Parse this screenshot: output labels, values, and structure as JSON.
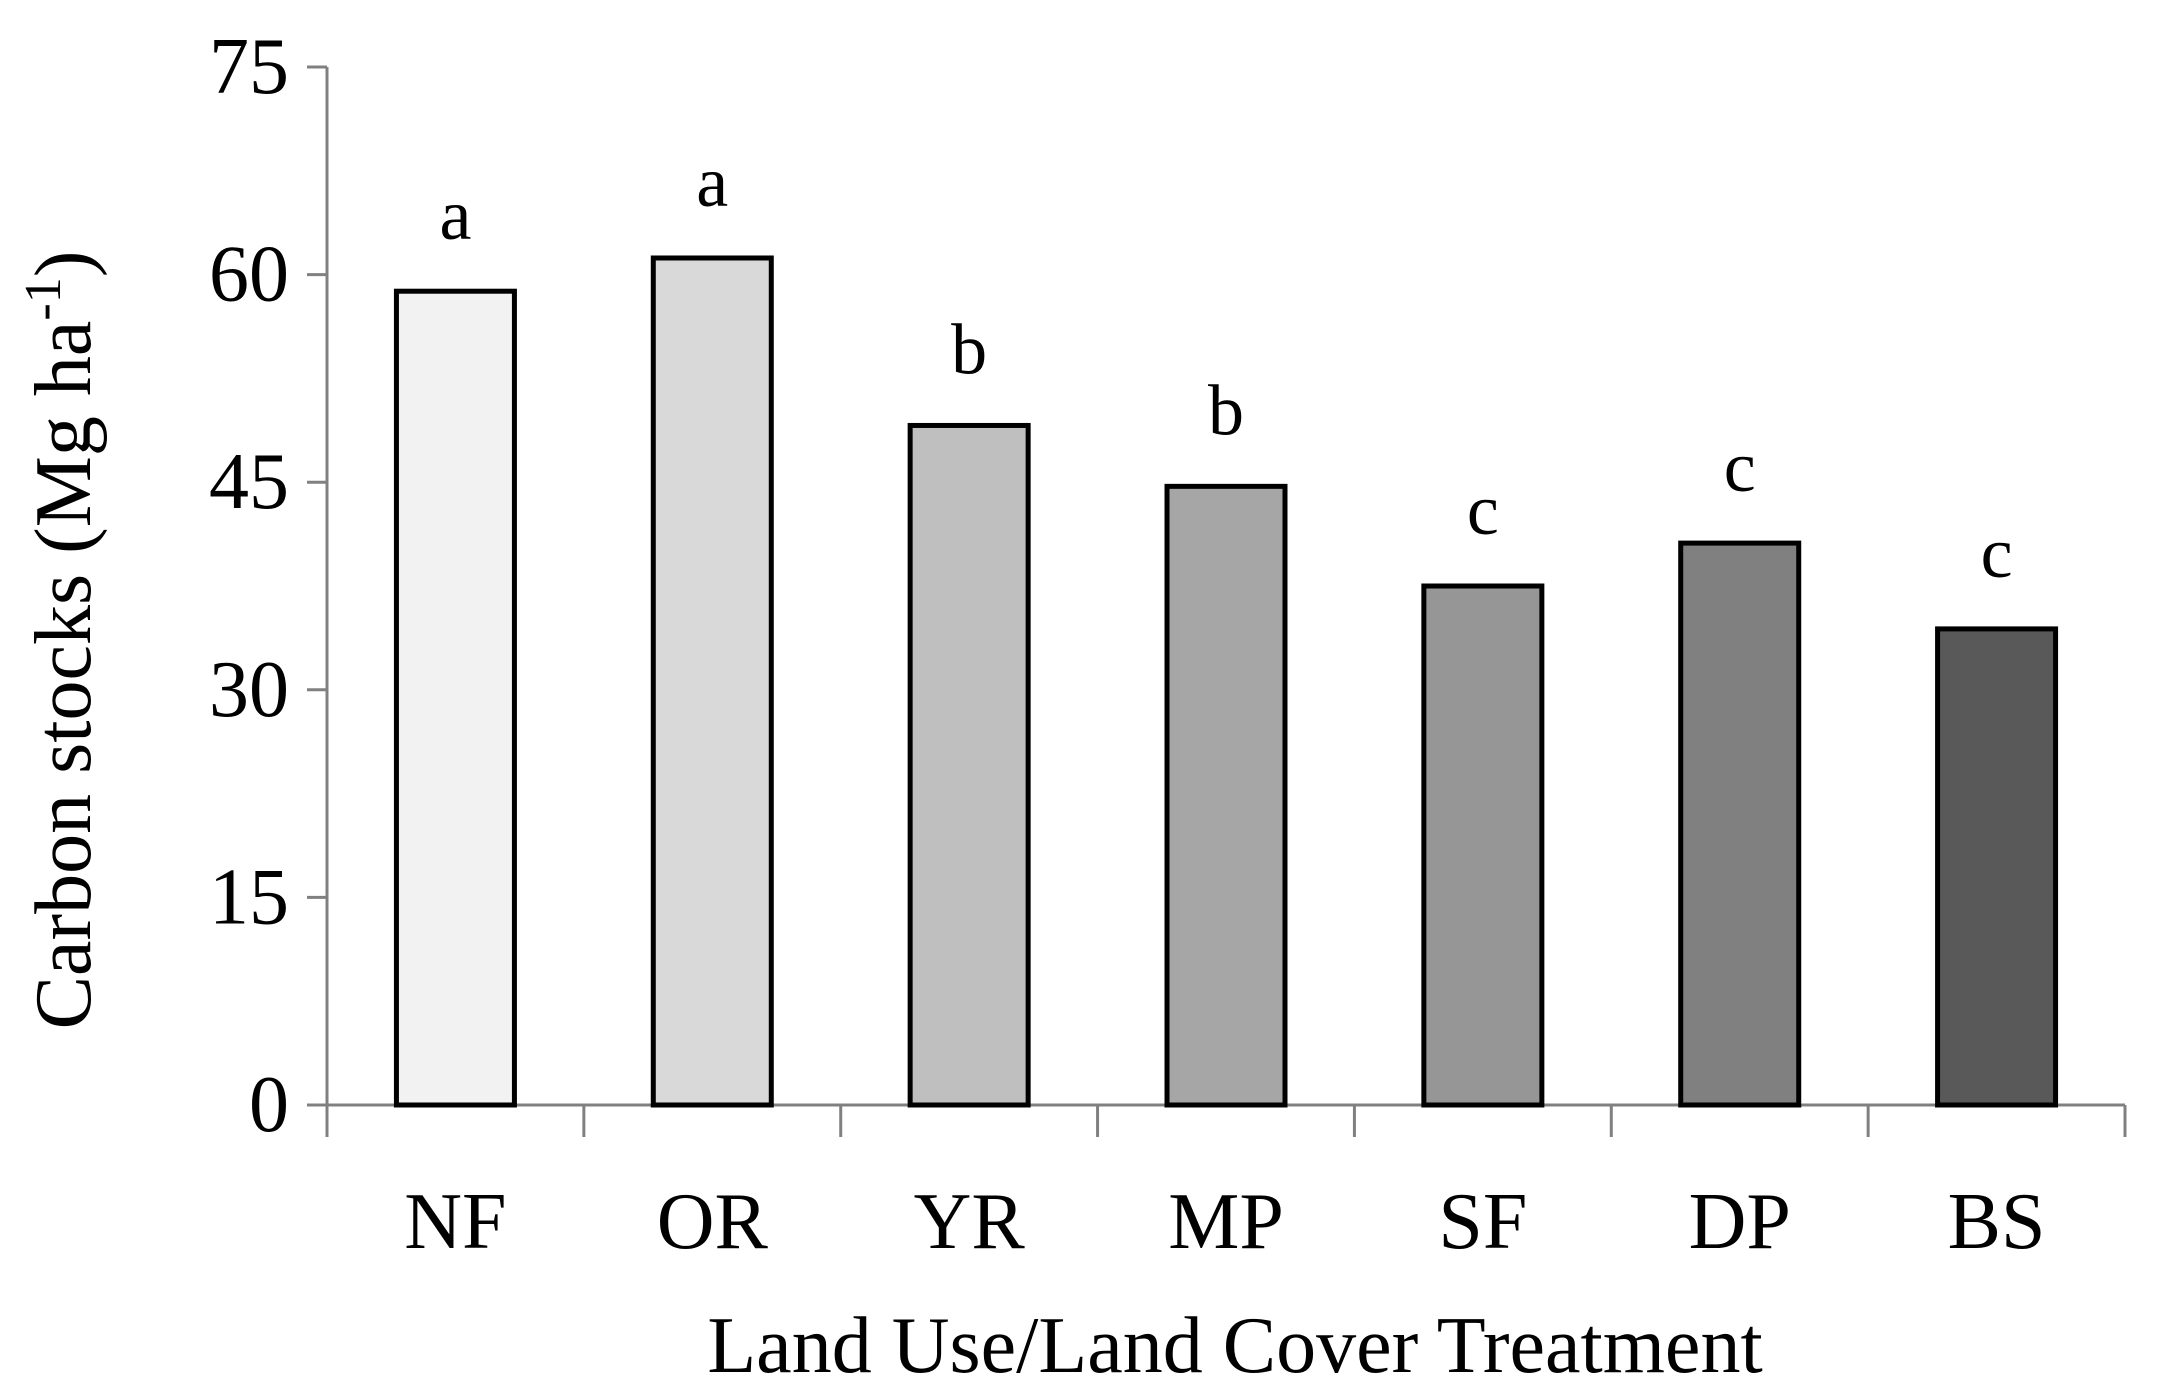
{
  "chart_data": {
    "type": "bar",
    "xlabel": "Land Use/Land Cover Treatment",
    "ylabel": "Carbon stocks (Mg ha",
    "ylabel_sup": "-1",
    "ylabel_close": ")",
    "categories": [
      "NF",
      "OR",
      "YR",
      "MP",
      "SF",
      "DP",
      "BS"
    ],
    "values": [
      58.8,
      61.2,
      49.1,
      44.7,
      37.5,
      40.6,
      34.4
    ],
    "significance": [
      "a",
      "a",
      "b",
      "b",
      "c",
      "c",
      "c"
    ],
    "bar_colors": [
      "#f2f2f2",
      "#d9d9d9",
      "#bfbfbf",
      "#a6a6a6",
      "#969696",
      "#808080",
      "#595959"
    ],
    "ylim": [
      0,
      75
    ],
    "yticks": [
      0,
      15,
      30,
      45,
      60,
      75
    ],
    "grid": false,
    "legend": "none"
  }
}
